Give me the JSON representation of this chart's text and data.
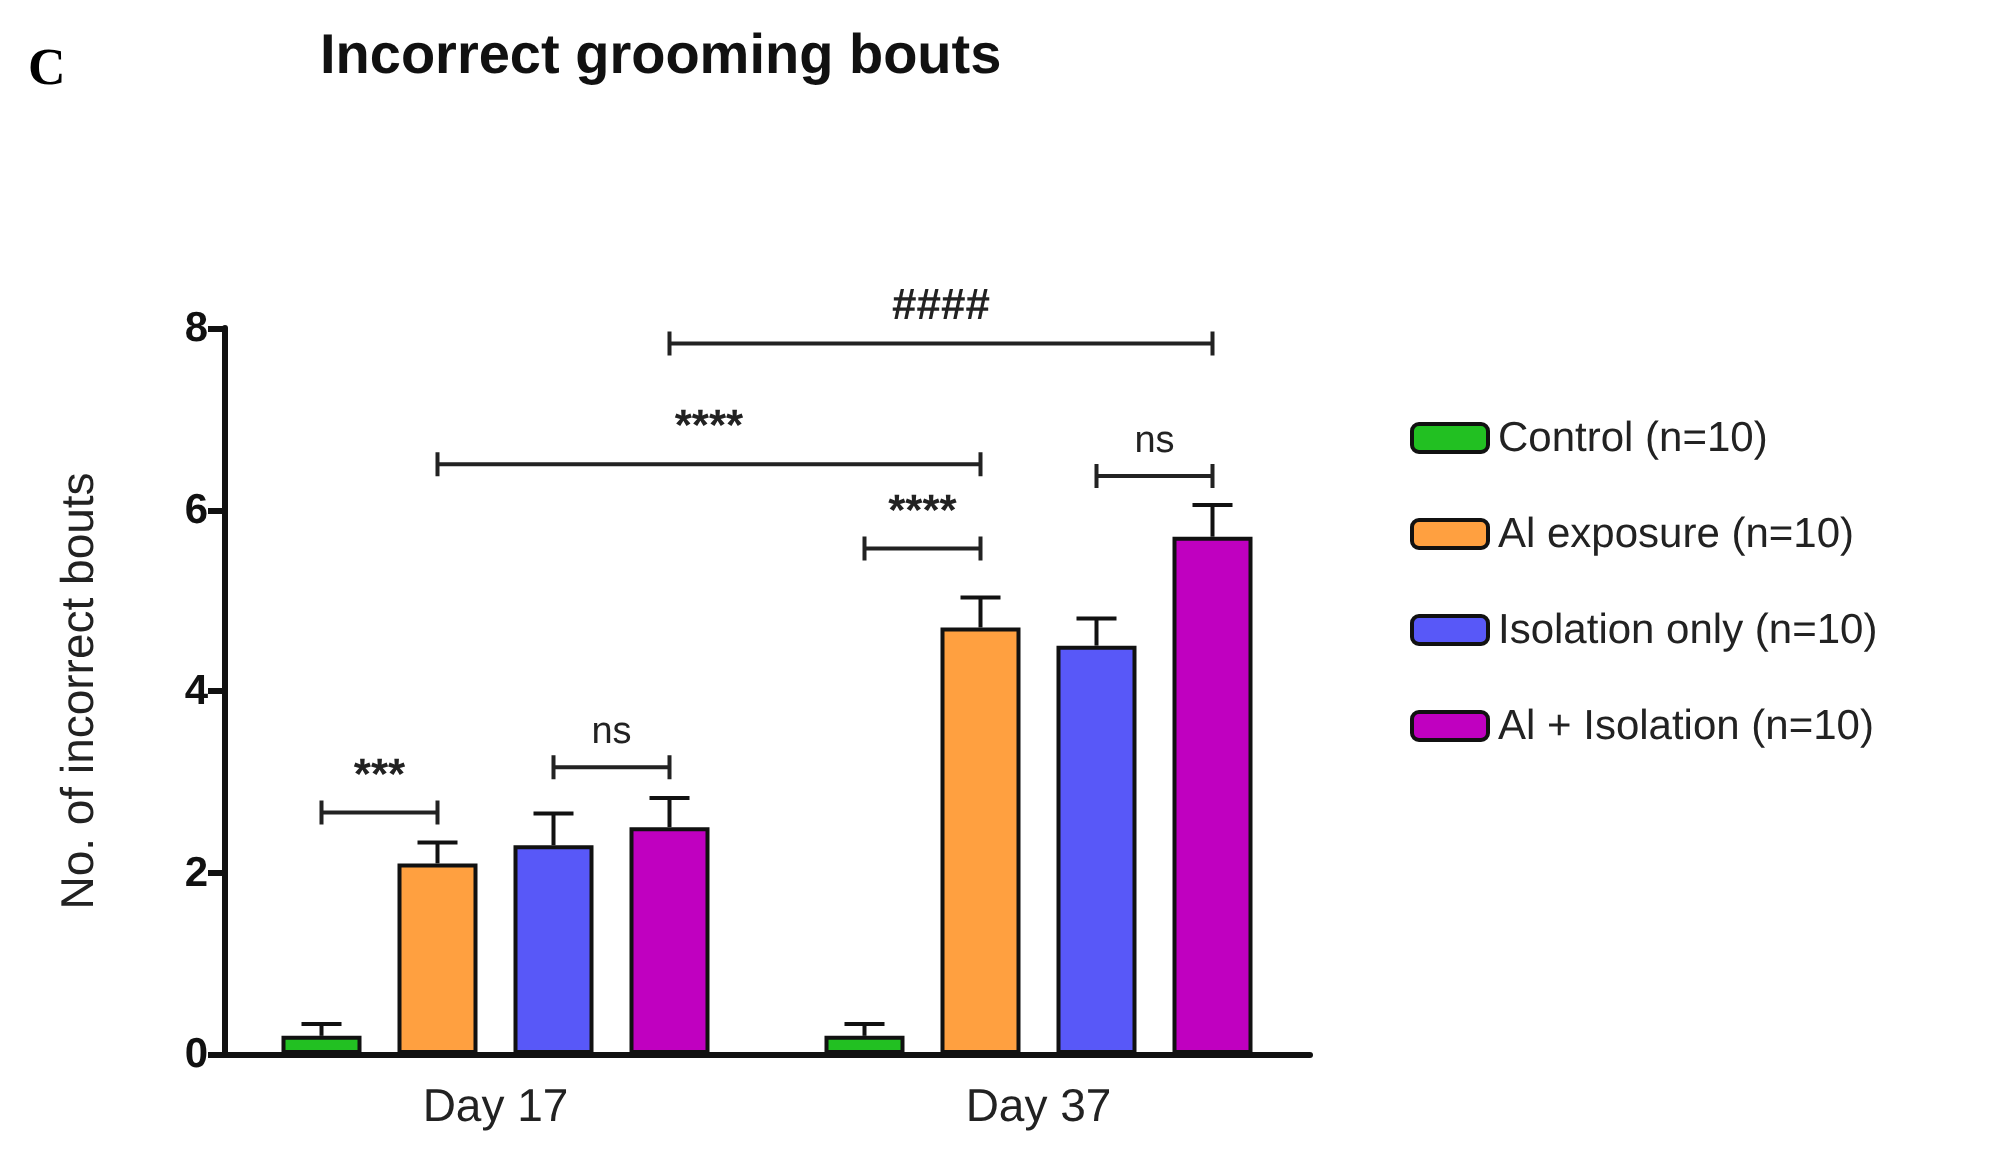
{
  "chart_data": {
    "type": "bar",
    "title": "Incorrect grooming bouts",
    "ylabel": "No. of incorrect bouts",
    "categories": [
      "Day 17",
      "Day 37"
    ],
    "series": [
      {
        "name": "Control (n=10)",
        "color": "#22c022",
        "values": [
          0.2,
          0.2
        ],
        "errors": [
          [
            0.2,
            0.33
          ],
          [
            0.2,
            0.33
          ]
        ]
      },
      {
        "name": "Al exposure (n=10)",
        "color": "#ffa040",
        "values": [
          2.1,
          4.7
        ],
        "errors": [
          [
            2.1,
            2.33
          ],
          [
            4.7,
            5.03
          ]
        ]
      },
      {
        "name": "Isolation only (n=10)",
        "color": "#5858f8",
        "values": [
          2.3,
          4.5
        ],
        "errors": [
          [
            2.3,
            2.65
          ],
          [
            4.5,
            4.8
          ]
        ]
      },
      {
        "name": "Al + Isolation (n=10)",
        "color": "#c000c0",
        "values": [
          2.5,
          5.7
        ],
        "errors": [
          [
            2.5,
            2.82
          ],
          [
            5.7,
            6.05
          ]
        ]
      }
    ],
    "ylim": [
      0,
      8
    ],
    "yticks": [
      0,
      2,
      4,
      6,
      8
    ],
    "grid": false,
    "legend": "right",
    "annotations": [
      "C",
      "***",
      "ns",
      "****",
      "####",
      "****",
      "ns"
    ]
  }
}
